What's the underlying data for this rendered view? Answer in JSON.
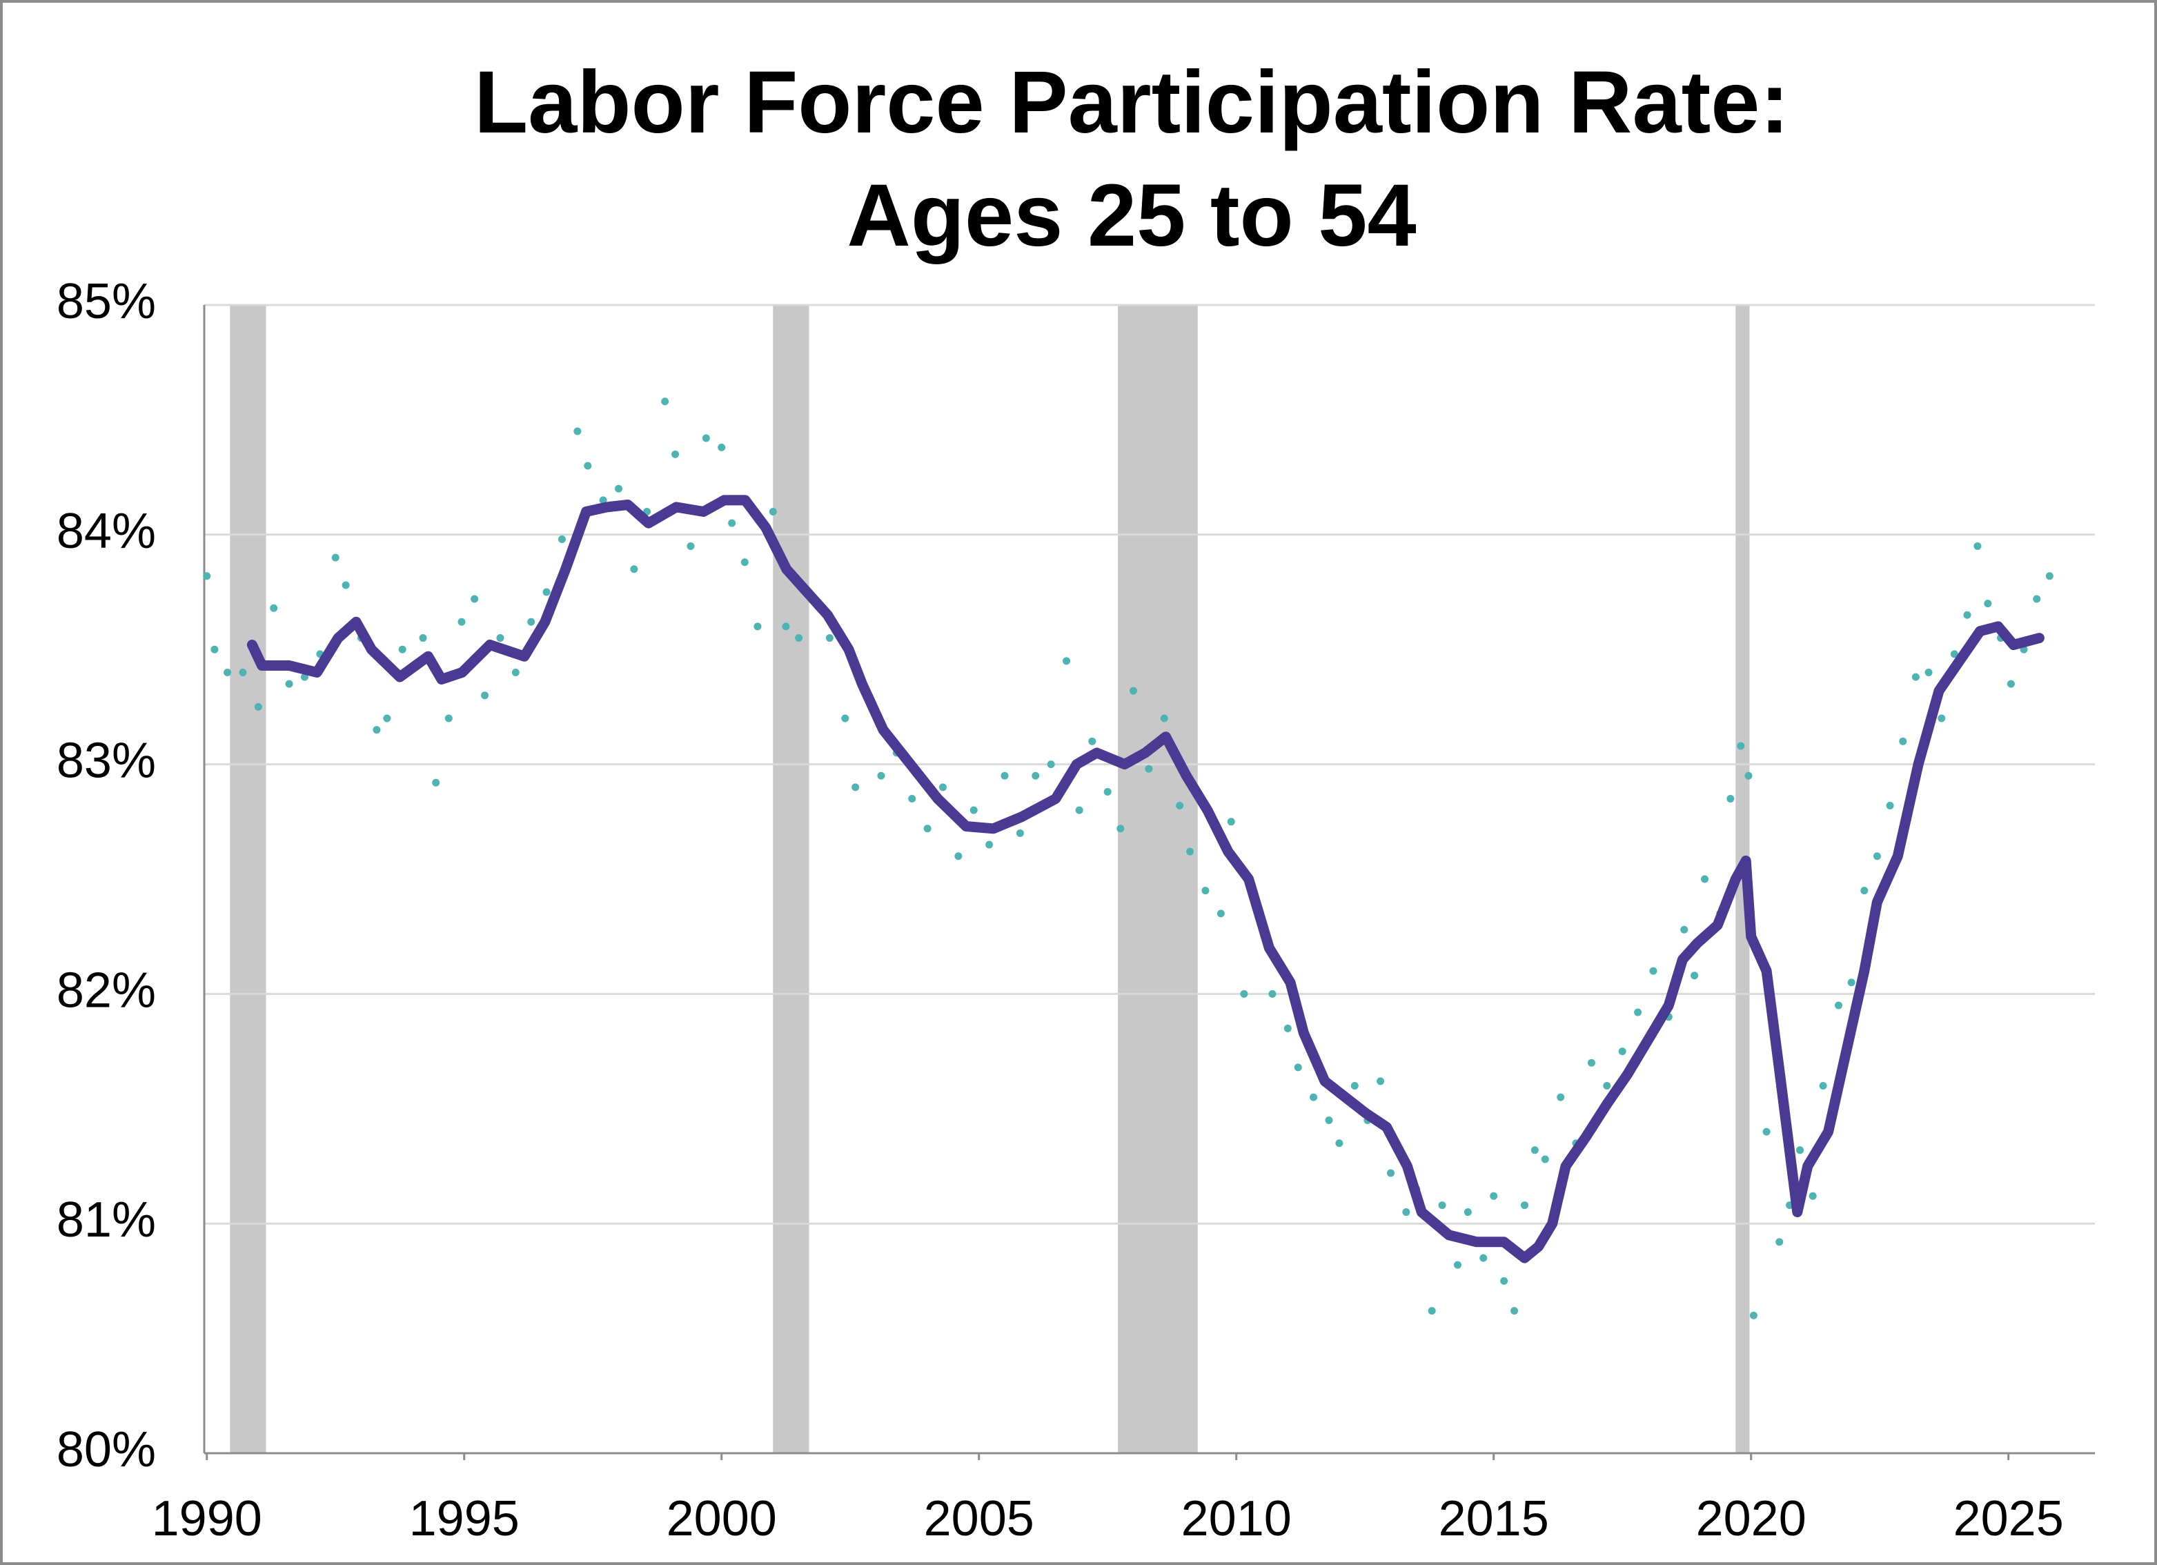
{
  "chart_data": {
    "type": "line",
    "title": [
      "Labor Force Participation Rate:",
      "Ages 25 to 54"
    ],
    "xlim": [
      1989.95,
      2026.68
    ],
    "xticks": [
      1990,
      1995,
      2000,
      2005,
      2010,
      2015,
      2020,
      2025
    ],
    "ylim": [
      80,
      85
    ],
    "yticks": [
      {
        "value": 80,
        "label": "80%"
      },
      {
        "value": 81,
        "label": "81%"
      },
      {
        "value": 82,
        "label": "82%"
      },
      {
        "value": 83,
        "label": "83%"
      },
      {
        "value": 84,
        "label": "84%"
      },
      {
        "value": 85,
        "label": "85%"
      }
    ],
    "grid": true,
    "shaded_periods": [
      [
        1990.45,
        1991.15
      ],
      [
        2001.0,
        2001.7
      ],
      [
        2007.7,
        2009.25
      ],
      [
        2019.7,
        2019.97
      ]
    ],
    "shade_color": "#c8c8c8",
    "series": [
      {
        "type": "scatter",
        "color": "#4db3b3",
        "x": [
          1990.0,
          1990.15,
          1990.4,
          1990.7,
          1991.0,
          1991.3,
          1991.6,
          1991.9,
          1992.2,
          1992.5,
          1992.7,
          1993.0,
          1993.3,
          1993.5,
          1993.8,
          1994.2,
          1994.45,
          1994.7,
          1994.95,
          1995.2,
          1995.4,
          1995.7,
          1996.0,
          1996.3,
          1996.6,
          1996.9,
          1997.2,
          1997.4,
          1997.7,
          1998.0,
          1998.3,
          1998.55,
          1998.9,
          1999.1,
          1999.4,
          1999.7,
          2000.0,
          2000.2,
          2000.45,
          2000.7,
          2001.0,
          2001.25,
          2001.5,
          2001.8,
          2002.1,
          2002.4,
          2002.6,
          2002.9,
          2003.1,
          2003.4,
          2003.7,
          2004.0,
          2004.3,
          2004.6,
          2004.9,
          2005.2,
          2005.5,
          2005.8,
          2006.1,
          2006.4,
          2006.7,
          2006.95,
          2007.2,
          2007.5,
          2007.75,
          2008.0,
          2008.3,
          2008.6,
          2008.9,
          2009.1,
          2009.4,
          2009.7,
          2009.9,
          2010.15,
          2010.45,
          2010.7,
          2011.0,
          2011.2,
          2011.5,
          2011.8,
          2012.0,
          2012.3,
          2012.55,
          2012.8,
          2013.0,
          2013.3,
          2013.5,
          2013.8,
          2014.0,
          2014.3,
          2014.5,
          2014.8,
          2015.0,
          2015.2,
          2015.4,
          2015.6,
          2015.8,
          2016.0,
          2016.3,
          2016.6,
          2016.9,
          2017.2,
          2017.5,
          2017.8,
          2018.1,
          2018.4,
          2018.7,
          2018.9,
          2019.1,
          2019.4,
          2019.6,
          2019.8,
          2019.95,
          2020.05,
          2020.3,
          2020.55,
          2020.75,
          2020.95,
          2021.2,
          2021.4,
          2021.7,
          2021.95,
          2022.2,
          2022.45,
          2022.7,
          2022.95,
          2023.2,
          2023.45,
          2023.7,
          2023.95,
          2024.2,
          2024.4,
          2024.6,
          2024.85,
          2025.05,
          2025.3,
          2025.55,
          2025.8
        ],
        "values": [
          83.82,
          83.5,
          83.4,
          83.4,
          83.25,
          83.68,
          83.35,
          83.38,
          83.48,
          83.9,
          83.78,
          83.55,
          83.15,
          83.2,
          83.5,
          83.55,
          82.92,
          83.2,
          83.62,
          83.72,
          83.3,
          83.55,
          83.4,
          83.62,
          83.75,
          83.98,
          84.45,
          84.3,
          84.15,
          84.2,
          83.85,
          84.1,
          84.58,
          84.35,
          83.95,
          84.42,
          84.38,
          84.05,
          83.88,
          83.6,
          84.1,
          83.6,
          83.55,
          83.72,
          83.55,
          83.2,
          82.9,
          83.28,
          82.95,
          83.05,
          82.85,
          82.72,
          82.9,
          82.6,
          82.8,
          82.65,
          82.95,
          82.7,
          82.95,
          83.0,
          83.45,
          82.8,
          83.1,
          82.88,
          82.72,
          83.32,
          82.98,
          83.2,
          82.82,
          82.62,
          82.45,
          82.35,
          82.75,
          82.0,
          82.35,
          82.0,
          81.85,
          81.68,
          81.55,
          81.45,
          81.35,
          81.6,
          81.45,
          81.62,
          81.22,
          81.05,
          81.15,
          80.62,
          81.08,
          80.82,
          81.05,
          80.85,
          81.12,
          80.75,
          80.62,
          81.08,
          81.32,
          81.28,
          81.55,
          81.35,
          81.7,
          81.6,
          81.75,
          81.92,
          82.1,
          81.9,
          82.28,
          82.08,
          82.5,
          82.35,
          82.85,
          83.08,
          82.95,
          80.6,
          81.4,
          80.92,
          81.08,
          81.32,
          81.12,
          81.6,
          81.95,
          82.05,
          82.45,
          82.6,
          82.82,
          83.1,
          83.38,
          83.4,
          83.2,
          83.48,
          83.65,
          83.95,
          83.7,
          83.55,
          83.35,
          83.5,
          83.72,
          83.82
        ]
      },
      {
        "type": "line",
        "color": "#4b3a94",
        "x": [
          1990.88,
          1991.07,
          1991.6,
          1992.14,
          1992.55,
          1992.9,
          1993.2,
          1993.75,
          1994.3,
          1994.56,
          1994.96,
          1995.5,
          1996.17,
          1996.57,
          1996.97,
          1997.37,
          1997.77,
          1998.18,
          1998.58,
          1999.12,
          1999.65,
          2000.05,
          2000.46,
          2000.86,
          2001.26,
          2001.66,
          2002.06,
          2002.47,
          2002.73,
          2003.14,
          2003.67,
          2004.2,
          2004.75,
          2005.28,
          2005.82,
          2006.49,
          2006.9,
          2007.29,
          2007.83,
          2008.23,
          2008.63,
          2009.03,
          2009.44,
          2009.84,
          2010.24,
          2010.64,
          2011.05,
          2011.31,
          2011.72,
          2012.12,
          2012.52,
          2012.92,
          2013.32,
          2013.6,
          2014.13,
          2014.67,
          2015.2,
          2015.6,
          2015.87,
          2016.14,
          2016.4,
          2016.8,
          2017.2,
          2017.6,
          2018.0,
          2018.4,
          2018.67,
          2018.95,
          2019.35,
          2019.7,
          2019.9,
          2020.0,
          2020.3,
          2020.56,
          2020.9,
          2021.1,
          2021.5,
          2021.9,
          2022.2,
          2022.45,
          2022.85,
          2023.25,
          2023.65,
          2024.05,
          2024.45,
          2024.8,
          2025.1,
          2025.6
        ],
        "values": [
          83.52,
          83.43,
          83.43,
          83.4,
          83.55,
          83.62,
          83.5,
          83.38,
          83.47,
          83.37,
          83.4,
          83.52,
          83.47,
          83.62,
          83.85,
          84.1,
          84.12,
          84.13,
          84.05,
          84.12,
          84.1,
          84.15,
          84.15,
          84.03,
          83.85,
          83.75,
          83.65,
          83.5,
          83.35,
          83.15,
          83.0,
          82.85,
          82.73,
          82.72,
          82.77,
          82.85,
          83.0,
          83.05,
          83.0,
          83.05,
          83.12,
          82.95,
          82.8,
          82.62,
          82.5,
          82.2,
          82.05,
          81.83,
          81.62,
          81.55,
          81.48,
          81.42,
          81.25,
          81.05,
          80.95,
          80.92,
          80.92,
          80.85,
          80.9,
          81.0,
          81.25,
          81.38,
          81.52,
          81.65,
          81.8,
          81.95,
          82.15,
          82.22,
          82.3,
          82.5,
          82.58,
          82.25,
          82.1,
          81.65,
          81.05,
          81.25,
          81.4,
          81.8,
          82.1,
          82.4,
          82.6,
          83.0,
          83.32,
          83.45,
          83.58,
          83.6,
          83.52,
          83.55
        ]
      }
    ]
  }
}
